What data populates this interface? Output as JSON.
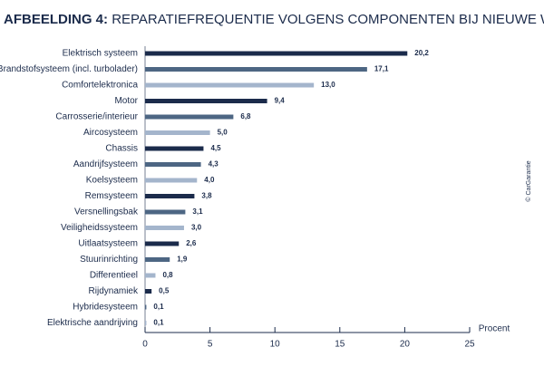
{
  "chart_data": {
    "type": "bar",
    "orientation": "horizontal",
    "title_label": "AFBEELDING 4:",
    "title": "REPARATIEFREQUENTIE VOLGENS COMPONENTEN BIJ NIEUWE WAGENS",
    "categories": [
      "Elektrisch systeem",
      "Brandstofsysteem (incl. turbolader)",
      "Comfortelektronica",
      "Motor",
      "Carrosserie/interieur",
      "Aircosysteem",
      "Chassis",
      "Aandrijfsysteem",
      "Koelsysteem",
      "Remsysteem",
      "Versnellingsbak",
      "Veiligheidssysteem",
      "Uitlaatsysteem",
      "Stuurinrichting",
      "Differentieel",
      "Rijdynamiek",
      "Hybridesysteem",
      "Elektrische aandrijving"
    ],
    "values": [
      20.2,
      17.1,
      13.0,
      9.4,
      6.8,
      5.0,
      4.5,
      4.3,
      4.0,
      3.8,
      3.1,
      3.0,
      2.6,
      1.9,
      0.8,
      0.5,
      0.1,
      0.1
    ],
    "value_labels": [
      "20,2",
      "17,1",
      "13,0",
      "9,4",
      "6,8",
      "5,0",
      "4,5",
      "4,3",
      "4,0",
      "3,8",
      "3,1",
      "3,0",
      "2,6",
      "1,9",
      "0,8",
      "0,5",
      "0,1",
      "0,1"
    ],
    "colors": [
      "#1b2b4b",
      "#4d6683",
      "#a4b5cc",
      "#1b2b4b",
      "#4d6683",
      "#a4b5cc",
      "#1b2b4b",
      "#4d6683",
      "#a4b5cc",
      "#1b2b4b",
      "#4d6683",
      "#a4b5cc",
      "#1b2b4b",
      "#4d6683",
      "#a4b5cc",
      "#1b2b4b",
      "#4d6683",
      "#a4b5cc"
    ],
    "xlabel": "Procent",
    "xlim": [
      0,
      25
    ],
    "xticks": [
      0,
      5,
      10,
      15,
      20,
      25
    ],
    "annotation": "© CarGarantie"
  }
}
